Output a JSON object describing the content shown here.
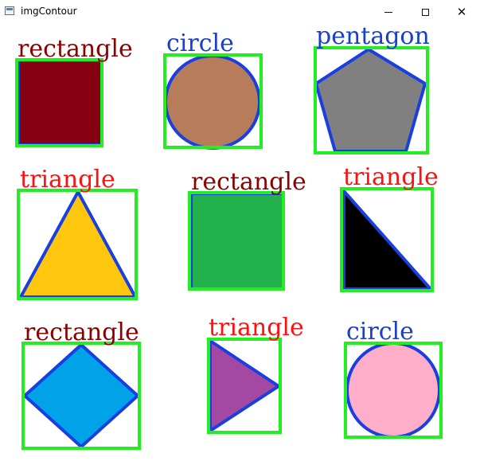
{
  "window": {
    "title": "imgContour",
    "icons": {
      "app": "app-window-icon",
      "minimize": "minimize-icon",
      "maximize": "maximize-icon",
      "close": "close-icon"
    },
    "close_glyph": "✕"
  },
  "colors": {
    "box": "#22ee22",
    "outline": "#1a3fe0",
    "label_red": "#8b0000",
    "label_bright_red": "#ff1010",
    "label_blue": "#1a3fcc"
  },
  "shapes": [
    {
      "label": "rectangle",
      "label_color": "#8b0000",
      "fill": "#870014"
    },
    {
      "label": "circle",
      "label_color": "#1a3fcc",
      "fill": "#b77c5a"
    },
    {
      "label": "pentagon",
      "label_color": "#1a3fcc",
      "fill": "#808080"
    },
    {
      "label": "triangle",
      "label_color": "#ff1010",
      "fill": "#ffc60e"
    },
    {
      "label": "rectangle",
      "label_color": "#8b0000",
      "fill": "#22b14c"
    },
    {
      "label": "triangle",
      "label_color": "#ff1010",
      "fill": "#000000"
    },
    {
      "label": "rectangle",
      "label_color": "#8b0000",
      "fill": "#00a2e8"
    },
    {
      "label": "triangle",
      "label_color": "#ff1010",
      "fill": "#a349a4"
    },
    {
      "label": "circle",
      "label_color": "#1a3fcc",
      "fill": "#ffaec9"
    }
  ]
}
